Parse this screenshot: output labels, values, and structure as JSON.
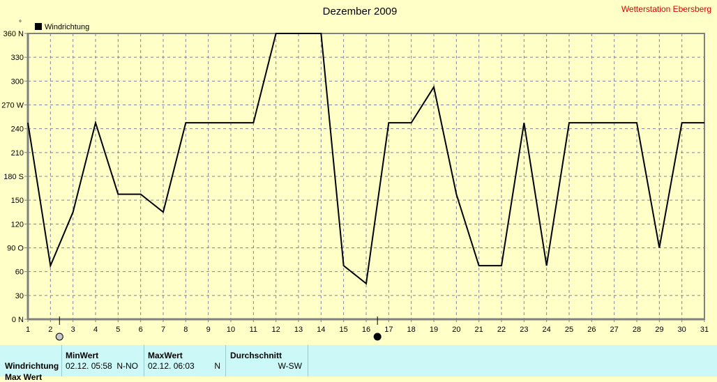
{
  "chart_data": {
    "type": "line",
    "title": "Dezember 2009",
    "station": "Wetterstation Ebersberg",
    "unit_label": "°",
    "legend": "Windrichtung",
    "legend_placement": "top-left",
    "grid": true,
    "xlim": [
      1,
      31
    ],
    "ylim": [
      0,
      360
    ],
    "x": [
      1,
      2,
      3,
      4,
      5,
      6,
      7,
      8,
      9,
      10,
      11,
      12,
      13,
      14,
      15,
      16,
      17,
      18,
      19,
      20,
      21,
      22,
      23,
      24,
      25,
      26,
      27,
      28,
      29,
      30,
      31
    ],
    "series": [
      {
        "name": "Windrichtung",
        "color": "#000000",
        "values": [
          247.5,
          67.5,
          135,
          247.5,
          157.5,
          157.5,
          135,
          247.5,
          247.5,
          247.5,
          247.5,
          360,
          360,
          360,
          67.5,
          45,
          247.5,
          247.5,
          292.5,
          157.5,
          67.5,
          67.5,
          247.5,
          67.5,
          247.5,
          247.5,
          247.5,
          247.5,
          90,
          247.5,
          247.5
        ]
      }
    ],
    "yticks": [
      {
        "v": 0,
        "l": "0  N"
      },
      {
        "v": 30,
        "l": "30"
      },
      {
        "v": 60,
        "l": "60"
      },
      {
        "v": 90,
        "l": "90  O"
      },
      {
        "v": 120,
        "l": "120"
      },
      {
        "v": 150,
        "l": "150"
      },
      {
        "v": 180,
        "l": "180 S"
      },
      {
        "v": 210,
        "l": "210"
      },
      {
        "v": 240,
        "l": "240"
      },
      {
        "v": 270,
        "l": "270 W"
      },
      {
        "v": 300,
        "l": "300"
      },
      {
        "v": 330,
        "l": "330"
      },
      {
        "v": 360,
        "l": "360 N"
      }
    ],
    "moon_phases": [
      {
        "day": 2.4,
        "phase": "full-moon"
      },
      {
        "day": 16.5,
        "phase": "new-moon"
      }
    ]
  },
  "panel": {
    "row_label": "Windrichtung",
    "row_label2": "Max Wert",
    "min": {
      "header": "MinWert",
      "date": "02.12.  05:58",
      "value": "N-NO"
    },
    "max": {
      "header": "MaxWert",
      "date": "02.12.  06:03",
      "value": "N"
    },
    "avg": {
      "header": "Durchschnitt",
      "value": "W-SW"
    }
  }
}
